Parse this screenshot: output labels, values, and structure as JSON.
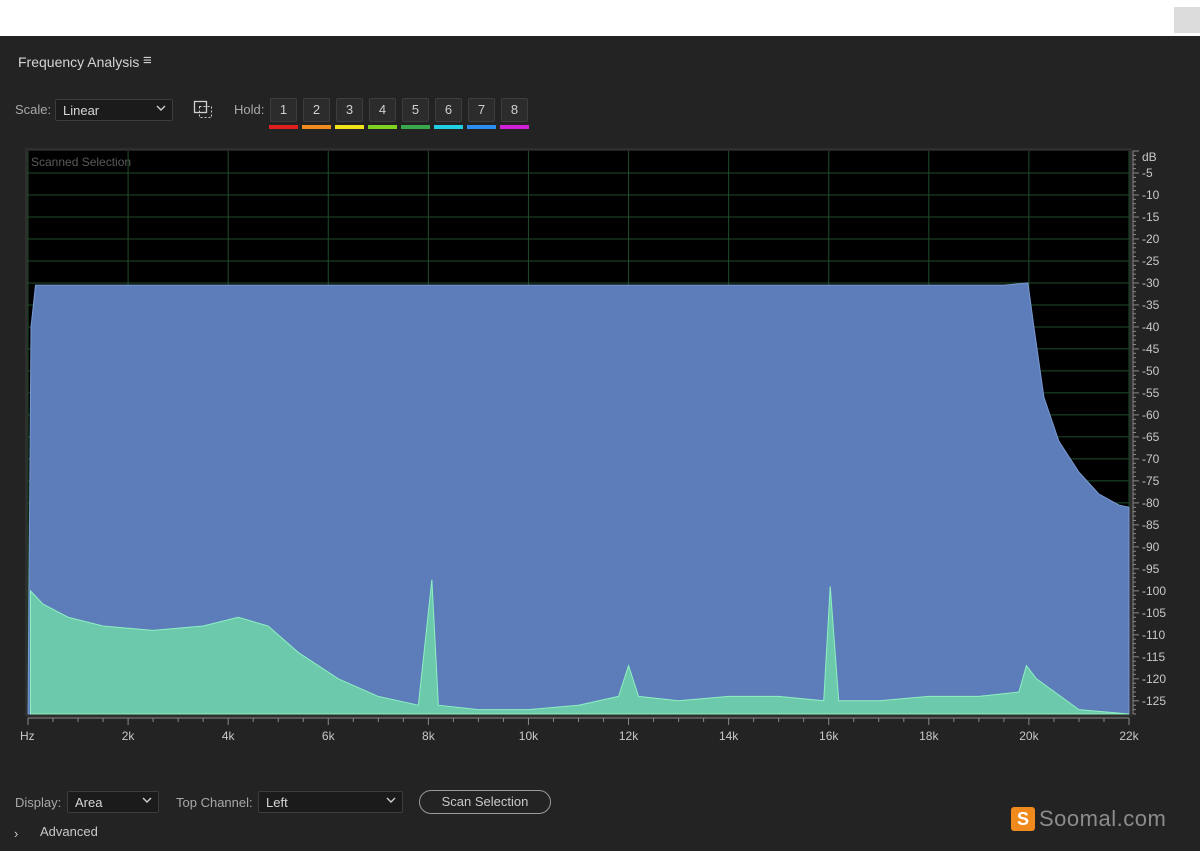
{
  "panel": {
    "title": "Frequency Analysis",
    "menu_icon": "hamburger-icon"
  },
  "toolbar": {
    "scale_label": "Scale:",
    "scale_value": "Linear",
    "marquee_icon": "marquee-zoom-icon",
    "hold_label": "Hold:",
    "hold_buttons": [
      {
        "label": "1",
        "color": "#e02020"
      },
      {
        "label": "2",
        "color": "#f08c1e"
      },
      {
        "label": "3",
        "color": "#f2e21a"
      },
      {
        "label": "4",
        "color": "#7ed321"
      },
      {
        "label": "5",
        "color": "#3aa84a"
      },
      {
        "label": "6",
        "color": "#22cfe0"
      },
      {
        "label": "7",
        "color": "#2a8ef0"
      },
      {
        "label": "8",
        "color": "#d01fd6"
      }
    ]
  },
  "chart_data": {
    "type": "area",
    "overlay_label": "Scanned Selection",
    "y_unit": "dB",
    "yticks": [
      -5,
      -10,
      -15,
      -20,
      -25,
      -30,
      -35,
      -40,
      -45,
      -50,
      -55,
      -60,
      -65,
      -70,
      -75,
      -80,
      -85,
      -90,
      -95,
      -100,
      -105,
      -110,
      -115,
      -120,
      -125
    ],
    "yticks_labels": [
      "-5",
      "-10",
      "-15",
      "-20",
      "-25",
      "-30",
      "-35",
      "-40",
      "-45",
      "-50",
      "-55",
      "-60",
      "-65",
      "-70",
      "-75",
      "-80",
      "-85",
      "-90",
      "-95",
      "-100",
      "-105",
      "-110",
      "-115",
      "-120",
      "-125"
    ],
    "ylim": [
      0,
      -128
    ],
    "xlim": [
      0,
      22000
    ],
    "xticks": [
      0,
      2000,
      4000,
      6000,
      8000,
      10000,
      12000,
      14000,
      16000,
      18000,
      20000,
      22000
    ],
    "xticks_labels": [
      "Hz",
      "2k",
      "4k",
      "6k",
      "8k",
      "10k",
      "12k",
      "14k",
      "16k",
      "18k",
      "20k",
      "22k"
    ],
    "grid": true,
    "colors": {
      "background": "#000000",
      "grid": "#1f4d2a",
      "primary_fill": "#5c7dba",
      "secondary_fill": "#6fd6a8"
    },
    "series": [
      {
        "channel": "primary",
        "x": [
          0,
          60,
          150,
          1000,
          5000,
          10000,
          15000,
          19500,
          19980,
          20100,
          20300,
          20600,
          21000,
          21400,
          21800,
          22000
        ],
        "y": [
          -128,
          -40,
          -30.5,
          -30.5,
          -30.5,
          -30.5,
          -30.5,
          -30.5,
          -30,
          -40,
          -56,
          -66,
          -73,
          -78,
          -80.5,
          -81
        ]
      },
      {
        "channel": "secondary",
        "x": [
          50,
          300,
          800,
          1500,
          2500,
          3500,
          4200,
          4800,
          5400,
          6200,
          7000,
          7800,
          8070,
          8200,
          9000,
          10000,
          11000,
          11800,
          12000,
          12200,
          13000,
          14000,
          15000,
          15900,
          16030,
          16200,
          17000,
          18000,
          19000,
          19800,
          19950,
          20150,
          21000,
          22000
        ],
        "y": [
          -100,
          -103,
          -106,
          -108,
          -109,
          -108,
          -106,
          -108,
          -114,
          -120,
          -124,
          -126,
          -97.5,
          -126,
          -127,
          -127,
          -126,
          -124,
          -117,
          -124,
          -125,
          -124,
          -124,
          -125,
          -99,
          -125,
          -125,
          -124,
          -124,
          -123,
          -117,
          -120,
          -127,
          -128
        ]
      }
    ]
  },
  "bottom": {
    "display_label": "Display:",
    "display_value": "Area",
    "channel_label": "Top Channel:",
    "channel_value": "Left",
    "scan_button": "Scan Selection",
    "advanced_label": "Advanced"
  },
  "watermark": {
    "logo_letter": "S",
    "text": "Soomal.com"
  }
}
